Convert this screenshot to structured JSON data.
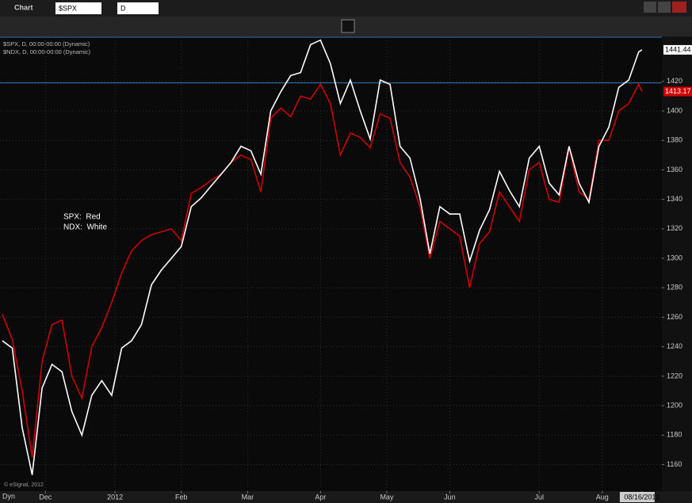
{
  "ui": {
    "window_title": "Chart",
    "symbol": "$SPX",
    "interval": "D",
    "mode": "Dyn",
    "copyright": "© eSignal, 2012"
  },
  "chart_data": {
    "type": "line",
    "annotations": [
      "SPX:  Red",
      "NDX:  White"
    ],
    "x": [
      0,
      3,
      6,
      9,
      12,
      15,
      18,
      21,
      24,
      27,
      30,
      33,
      36,
      39,
      42,
      45,
      48,
      51,
      54,
      57,
      60,
      63,
      66,
      69,
      72,
      75,
      78,
      81,
      84,
      87,
      90,
      93,
      96,
      99,
      102,
      105,
      108,
      111,
      114,
      117,
      120,
      123,
      126,
      129,
      132,
      135,
      138,
      141,
      144,
      147,
      150,
      153,
      156,
      159,
      162,
      165,
      168,
      171,
      174,
      177,
      180,
      183,
      186,
      189,
      192,
      193
    ],
    "xlim": [
      -0.7,
      199
    ],
    "xticks": [
      {
        "value": 13,
        "label": "Dec"
      },
      {
        "value": 34,
        "label": "2012"
      },
      {
        "value": 54,
        "label": "Feb"
      },
      {
        "value": 74,
        "label": "Mar"
      },
      {
        "value": 96,
        "label": "Apr"
      },
      {
        "value": 116,
        "label": "May"
      },
      {
        "value": 135,
        "label": "Jun"
      },
      {
        "value": 162,
        "label": "Jul"
      },
      {
        "value": 181,
        "label": "Aug"
      },
      {
        "value": 193,
        "label": "08/16/2012"
      }
    ],
    "ylim": [
      1142,
      1450
    ],
    "yticks": [
      1160,
      1180,
      1200,
      1220,
      1240,
      1260,
      1280,
      1300,
      1320,
      1340,
      1360,
      1380,
      1400,
      1420
    ],
    "grid": true,
    "hline": 1419,
    "series": [
      {
        "name": "$SPX, D, 00:00-00:00 (Dynamic)",
        "color": "#d00000",
        "values": [
          1262,
          1245,
          1210,
          1165,
          1230,
          1255,
          1258,
          1220,
          1205,
          1240,
          1253,
          1270,
          1290,
          1305,
          1312,
          1316,
          1318,
          1320,
          1312,
          1344,
          1348,
          1353,
          1357,
          1365,
          1370,
          1367,
          1345,
          1395,
          1402,
          1396,
          1410,
          1408,
          1418,
          1405,
          1370,
          1385,
          1382,
          1375,
          1398,
          1395,
          1365,
          1355,
          1335,
          1300,
          1325,
          1320,
          1315,
          1280,
          1310,
          1318,
          1345,
          1335,
          1325,
          1360,
          1365,
          1340,
          1338,
          1375,
          1345,
          1340,
          1380,
          1380,
          1400,
          1405,
          1418,
          1413.17
        ]
      },
      {
        "name": "$NDX, D, 00:00-00:00 (Dynamic)",
        "color": "#ffffff",
        "values": [
          1244,
          1239,
          1185,
          1153,
          1212,
          1228,
          1223,
          1196,
          1180,
          1207,
          1217,
          1207,
          1239,
          1244,
          1255,
          1282,
          1292,
          1300,
          1308,
          1335,
          1341,
          1349,
          1357,
          1365,
          1376,
          1373,
          1357,
          1400,
          1413,
          1424,
          1426,
          1445,
          1448,
          1432,
          1405,
          1421,
          1400,
          1381,
          1421,
          1418,
          1376,
          1368,
          1341,
          1303,
          1335,
          1330,
          1330,
          1298,
          1319,
          1333,
          1359,
          1346,
          1335,
          1368,
          1376,
          1351,
          1343,
          1376,
          1351,
          1338,
          1376,
          1389,
          1416,
          1421,
          1440,
          1441.44
        ]
      }
    ]
  }
}
